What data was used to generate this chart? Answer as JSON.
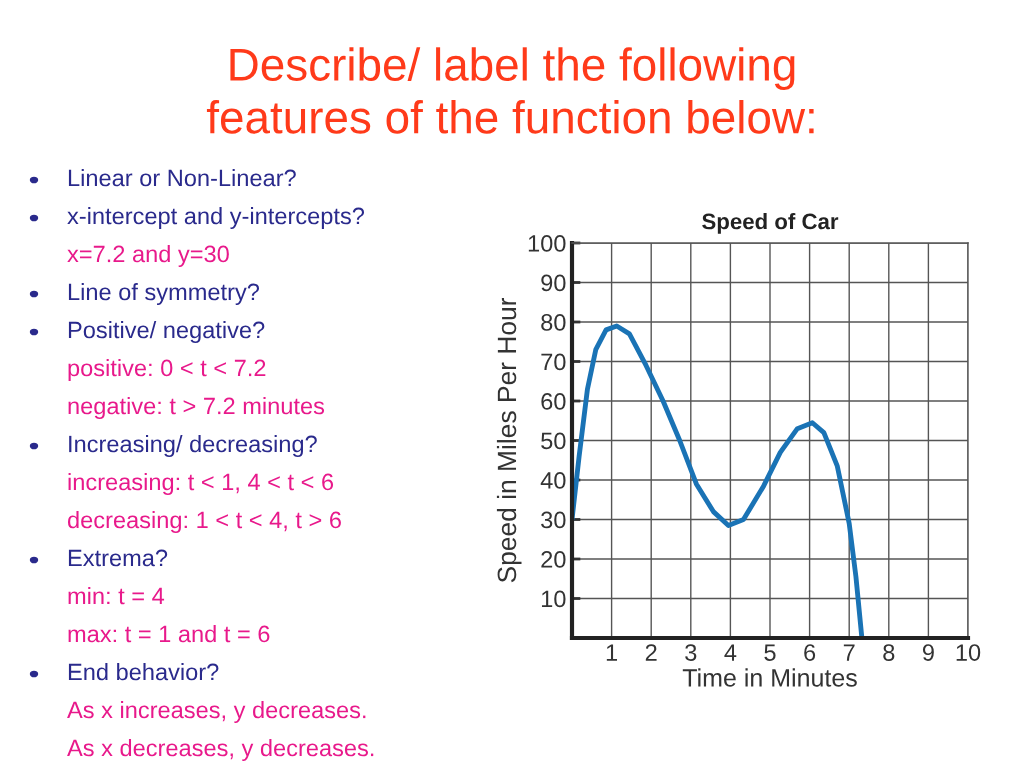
{
  "chart_data": {
    "type": "line",
    "title": "Describe/ label the following\nfeatures of the function below:",
    "subtitle": "Speed of Car",
    "xlabel": "Time in Minutes",
    "ylabel": "Speed in Miles Per Hour",
    "x": [
      0,
      0.18,
      0.39,
      0.6,
      0.86,
      1.13,
      1.45,
      1.87,
      2.3,
      2.72,
      3.14,
      3.57,
      3.95,
      4.33,
      4.84,
      5.26,
      5.69,
      6.07,
      6.36,
      6.7,
      7.0,
      7.17,
      7.32
    ],
    "series": [
      {
        "color": "#1a73b5",
        "values": [
          30,
          46,
          63,
          73,
          78,
          79,
          77,
          69,
          60,
          50,
          39,
          32,
          28.5,
          30,
          38.5,
          47,
          53,
          54.5,
          52,
          43.5,
          29,
          15.5,
          0
        ]
      }
    ],
    "xlim": [
      0,
      10
    ],
    "ylim": [
      0,
      100
    ],
    "xticks": [
      1,
      2,
      3,
      4,
      5,
      6,
      7,
      8,
      9,
      10
    ],
    "yticks": [
      10,
      20,
      30,
      40,
      50,
      60,
      70,
      80,
      90,
      100
    ],
    "grid": true,
    "marker": "none",
    "line_style": "solid",
    "annotations": [
      "Linear or Non-Linear?",
      "x-intercept and y-intercepts?\nx=7.2 and y=30",
      "Line of symmetry?",
      "Positive/ negative?\npositive: 0 < t < 7.2\nnegative: t > 7.2 minutes",
      "Increasing/ decreasing?\nincreasing: t < 1, 4 < t < 6\ndecreasing: 1 < t < 4, t > 6",
      "Extrema?\nmin: t = 4\nmax: t = 1 and t = 6",
      "End behavior?\nAs x increases, y decreases.\nAs x decreases, y decreases."
    ]
  }
}
